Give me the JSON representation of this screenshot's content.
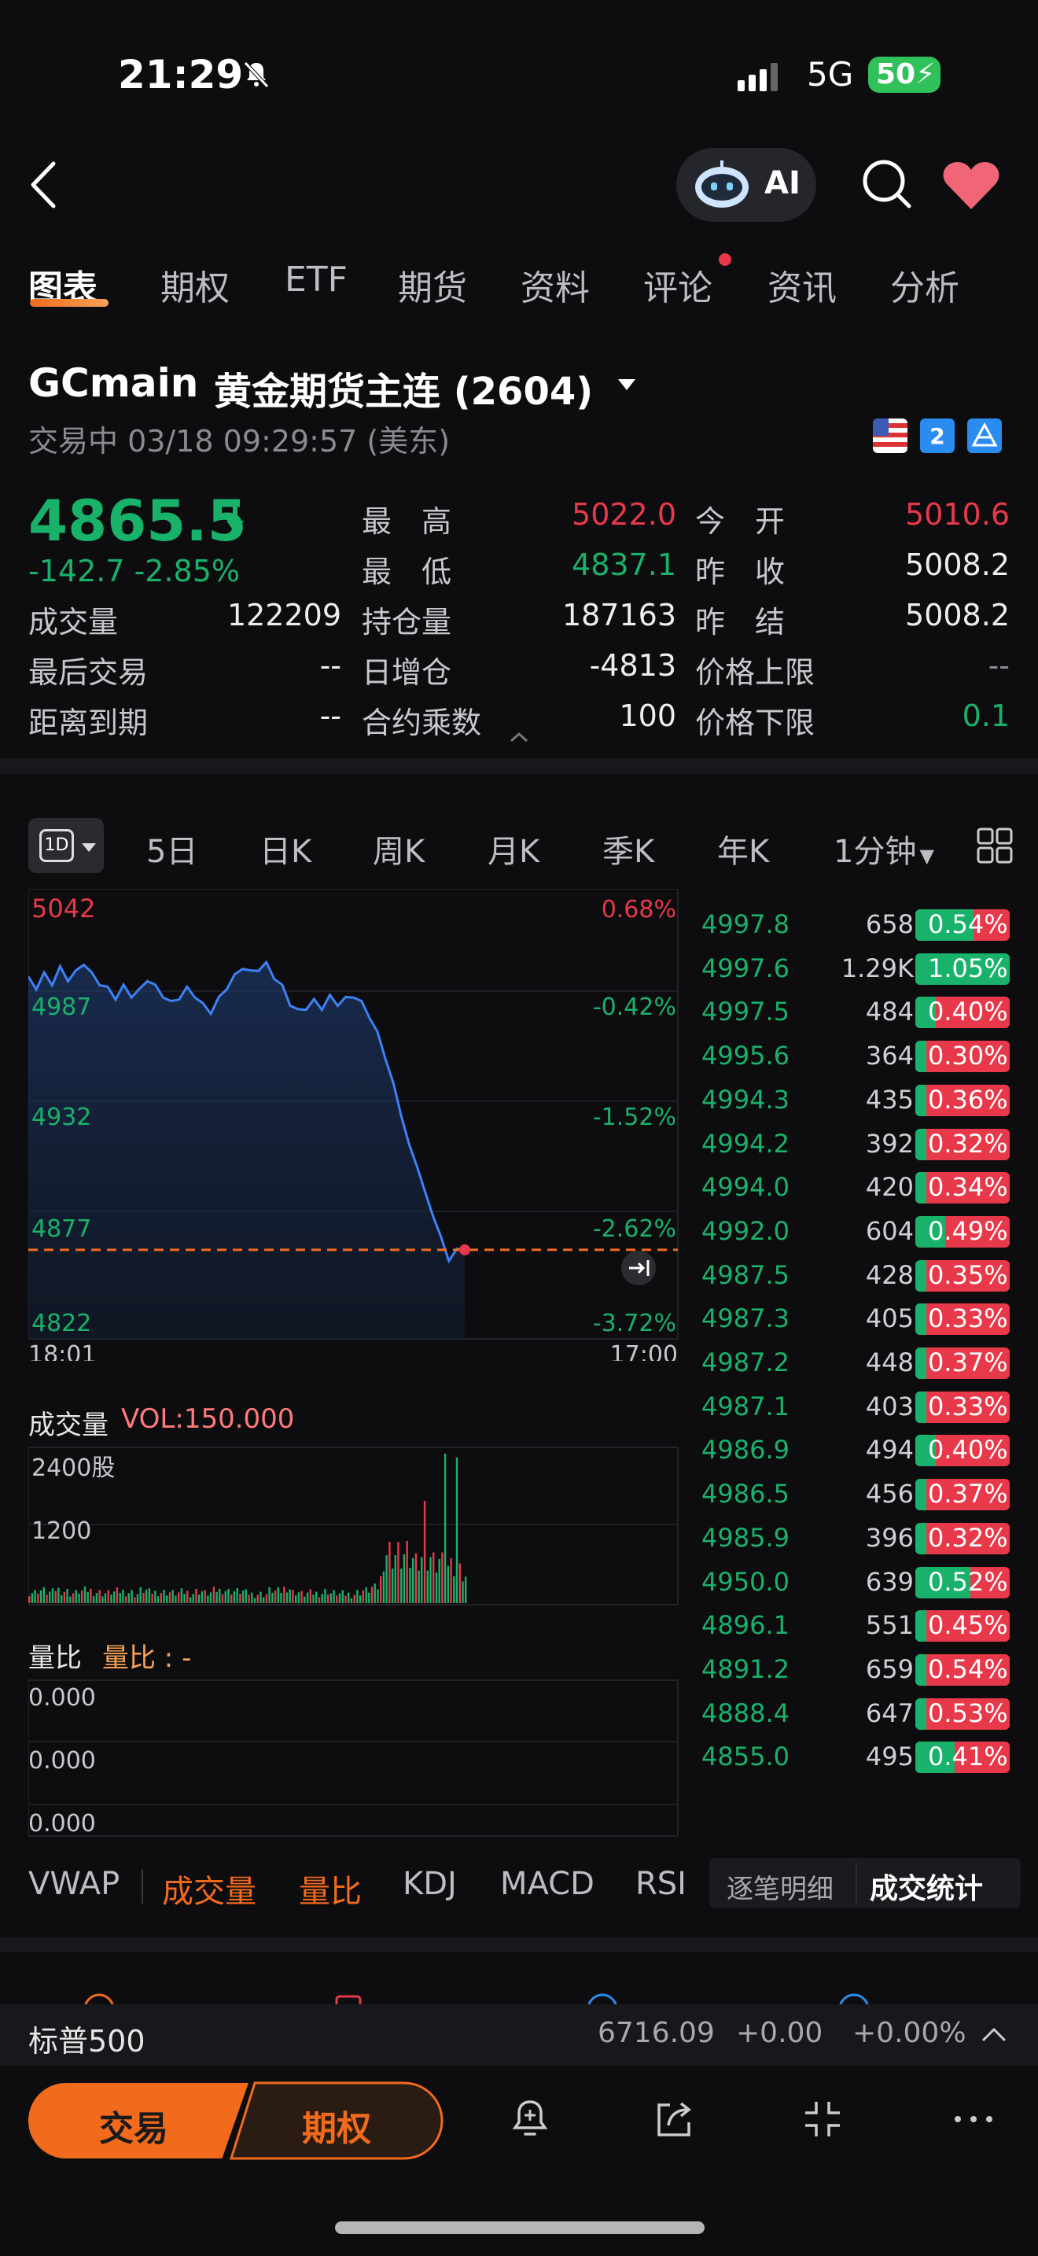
{
  "status_bar": {
    "time": "21:29",
    "network": "5G",
    "battery": "50"
  },
  "header": {
    "ai_label": "AI"
  },
  "tabs": [
    "图表",
    "期权",
    "ETF",
    "期货",
    "资料",
    "评论",
    "资讯",
    "分析"
  ],
  "instrument": {
    "symbol": "GCmain",
    "name": "黄金期货主连 (2604)",
    "status": "交易中 03/18 09:29:57 (美东)"
  },
  "quote": {
    "price": "4865.5",
    "change": "-142.7 -2.85%",
    "high_label": "最　高",
    "high": "5022.0",
    "open_label": "今　开",
    "open": "5010.6",
    "low_label": "最　低",
    "low": "4837.1",
    "prev_close_label": "昨　收",
    "prev_close": "5008.2",
    "volume_label": "成交量",
    "volume": "122209",
    "oi_label": "持仓量",
    "oi": "187163",
    "settle_label": "昨　结",
    "settle": "5008.2",
    "last_trade_label": "最后交易",
    "last_trade": "--",
    "oi_change_label": "日增仓",
    "oi_change": "-4813",
    "upper_limit_label": "价格上限",
    "upper_limit": "--",
    "expiry_label": "距离到期",
    "expiry": "--",
    "multiplier_label": "合约乘数",
    "multiplier": "100",
    "lower_limit_label": "价格下限",
    "lower_limit": "0.1"
  },
  "period_tabs": [
    "5日",
    "日K",
    "周K",
    "月K",
    "季K",
    "年K",
    "1分钟"
  ],
  "period_selected": "1D",
  "chart_data": {
    "type": "line",
    "y_ticks": [
      "5042",
      "4987",
      "4932",
      "4877",
      "4822"
    ],
    "pct_ticks": [
      "0.68%",
      "-0.42%",
      "-1.52%",
      "-2.62%",
      "-3.72%"
    ],
    "x_labels": [
      "18:01",
      "17:00"
    ],
    "ylim": [
      4822,
      5042
    ],
    "prev_close": 5008.2,
    "current": 4865.5,
    "points": [
      4998,
      4994,
      5000,
      4996,
      5003,
      4998,
      5001,
      5006,
      5000,
      4996,
      4993,
      4989,
      4994,
      4990,
      4992,
      4998,
      4994,
      4990,
      4986,
      4989,
      4993,
      4990,
      4985,
      4982,
      4988,
      4994,
      4999,
      5004,
      5001,
      5003,
      5005,
      4999,
      4994,
      4986,
      4982,
      4984,
      4987,
      4984,
      4989,
      4986,
      4988,
      4990,
      4986,
      4980,
      4971,
      4960,
      4946,
      4932,
      4917,
      4906,
      4894,
      4882,
      4872,
      4860,
      4866,
      4865.5
    ]
  },
  "order_flow": [
    {
      "price": "4997.8",
      "vol": "658",
      "pct": "0.54%",
      "g": 0.62
    },
    {
      "price": "4997.6",
      "vol": "1.29K",
      "pct": "1.05%",
      "g": 1.0
    },
    {
      "price": "4997.5",
      "vol": "484",
      "pct": "0.40%",
      "g": 0.22
    },
    {
      "price": "4995.6",
      "vol": "364",
      "pct": "0.30%",
      "g": 0.0
    },
    {
      "price": "4994.3",
      "vol": "435",
      "pct": "0.36%",
      "g": 0.0
    },
    {
      "price": "4994.2",
      "vol": "392",
      "pct": "0.32%",
      "g": 0.0
    },
    {
      "price": "4994.0",
      "vol": "420",
      "pct": "0.34%",
      "g": 0.0
    },
    {
      "price": "4992.0",
      "vol": "604",
      "pct": "0.49%",
      "g": 0.32
    },
    {
      "price": "4987.5",
      "vol": "428",
      "pct": "0.35%",
      "g": 0.0
    },
    {
      "price": "4987.3",
      "vol": "405",
      "pct": "0.33%",
      "g": 0.0
    },
    {
      "price": "4987.2",
      "vol": "448",
      "pct": "0.37%",
      "g": 0.0
    },
    {
      "price": "4987.1",
      "vol": "403",
      "pct": "0.33%",
      "g": 0.0
    },
    {
      "price": "4986.9",
      "vol": "494",
      "pct": "0.40%",
      "g": 0.22
    },
    {
      "price": "4986.5",
      "vol": "456",
      "pct": "0.37%",
      "g": 0.0
    },
    {
      "price": "4985.9",
      "vol": "396",
      "pct": "0.32%",
      "g": 0.0
    },
    {
      "price": "4950.0",
      "vol": "639",
      "pct": "0.52%",
      "g": 0.58
    },
    {
      "price": "4896.1",
      "vol": "551",
      "pct": "0.45%",
      "g": 0.0
    },
    {
      "price": "4891.2",
      "vol": "659",
      "pct": "0.54%",
      "g": 0.0
    },
    {
      "price": "4888.4",
      "vol": "647",
      "pct": "0.53%",
      "g": 0.0
    },
    {
      "price": "4855.0",
      "vol": "495",
      "pct": "0.41%",
      "g": 0.42
    }
  ],
  "volume": {
    "label": "成交量",
    "value": "VOL:150.000",
    "y_ticks": [
      "2400股",
      "1200"
    ]
  },
  "liangbi": {
    "label": "量比",
    "value": "量比 : -",
    "y_ticks": [
      "0.000",
      "0.000",
      "0.000"
    ]
  },
  "indicator_tabs": [
    "VWAP",
    "成交量",
    "量比",
    "KDJ",
    "MACD",
    "RSI"
  ],
  "detail_tabs": [
    "逐笔明细",
    "成交统计"
  ],
  "ticker": {
    "name": "标普500",
    "value": "6716.09",
    "change": "+0.00",
    "pct": "+0.00%"
  },
  "actions": {
    "trade": "交易",
    "options": "期权"
  }
}
